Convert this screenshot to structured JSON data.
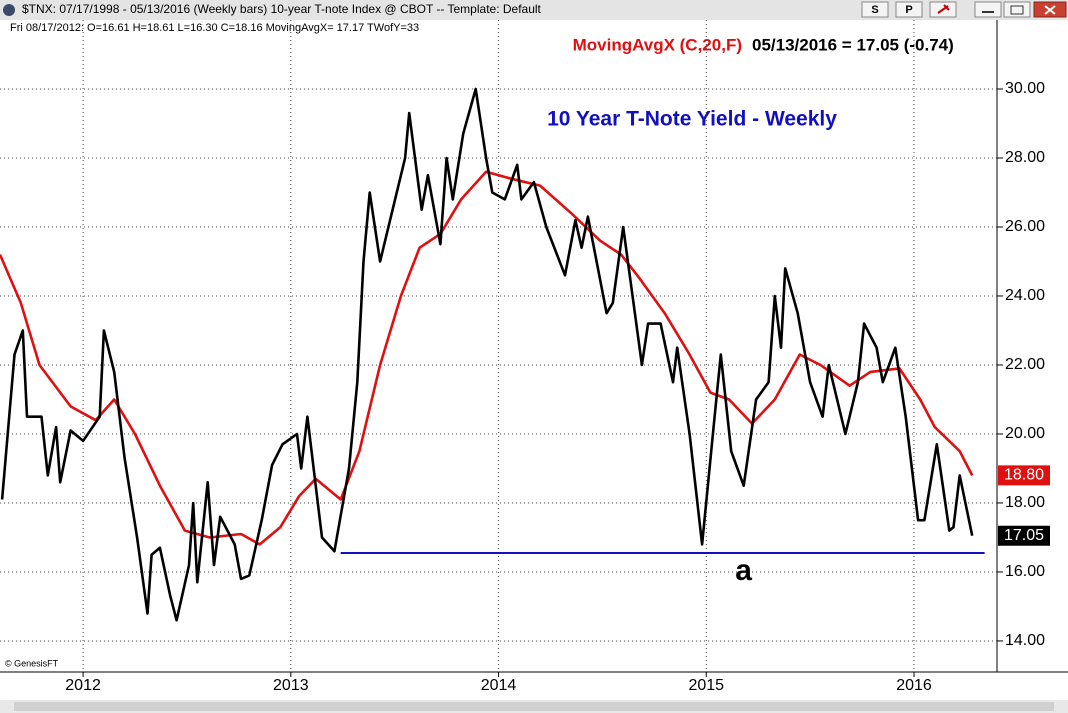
{
  "window": {
    "title": "$TNX: 07/17/1998 - 05/13/2016  (Weekly bars)  10-year T-note Index @ CBOT  --  Template: Default",
    "buttons": [
      "S",
      "P"
    ]
  },
  "info_line": "Fri    08/17/2012:  O=16.61  H=18.61  L=16.30  C=18.16  MovingAvgX= 17.17  TWofY=33",
  "chart_data": {
    "type": "line",
    "title": "10 Year T-Note Yield - Weekly",
    "legend_status": "05/13/2016 = 17.05 (-0.74)",
    "copyright": "© GenesisFT",
    "xlim": [
      2011.6,
      2016.39
    ],
    "xticks": [
      2012,
      2013,
      2014,
      2015,
      2016
    ],
    "ylim": [
      13.1,
      32.0
    ],
    "yticks": [
      {
        "value": 14,
        "label": "14.00"
      },
      {
        "value": 16,
        "label": "16.00"
      },
      {
        "value": 18,
        "label": "18.00"
      },
      {
        "value": 20,
        "label": "20.00"
      },
      {
        "value": 22,
        "label": "22.00"
      },
      {
        "value": 24,
        "label": "24.00"
      },
      {
        "value": 26,
        "label": "26.00"
      },
      {
        "value": 28,
        "label": "28.00"
      },
      {
        "value": 30,
        "label": "30.00"
      }
    ],
    "grid": true,
    "series": [
      {
        "color": "#000000",
        "x": [
          2011.61,
          2011.67,
          2011.71,
          2011.73,
          2011.8,
          2011.83,
          2011.87,
          2011.89,
          2011.94,
          2012.0,
          2012.08,
          2012.1,
          2012.15,
          2012.2,
          2012.26,
          2012.31,
          2012.33,
          2012.37,
          2012.42,
          2012.45,
          2012.51,
          2012.53,
          2012.55,
          2012.6,
          2012.63,
          2012.66,
          2012.73,
          2012.76,
          2012.8,
          2012.86,
          2012.91,
          2012.96,
          2013.03,
          2013.05,
          2013.08,
          2013.13,
          2013.15,
          2013.21,
          2013.28,
          2013.32,
          2013.35,
          2013.38,
          2013.43,
          2013.49,
          2013.55,
          2013.57,
          2013.63,
          2013.66,
          2013.72,
          2013.75,
          2013.78,
          2013.83,
          2013.89,
          2013.94,
          2013.97,
          2014.03,
          2014.09,
          2014.11,
          2014.17,
          2014.23,
          2014.32,
          2014.37,
          2014.4,
          2014.43,
          2014.52,
          2014.55,
          2014.6,
          2014.69,
          2014.72,
          2014.78,
          2014.84,
          2014.86,
          2014.92,
          2014.98,
          2015.04,
          2015.07,
          2015.12,
          2015.18,
          2015.24,
          2015.3,
          2015.33,
          2015.36,
          2015.38,
          2015.44,
          2015.5,
          2015.56,
          2015.59,
          2015.67,
          2015.73,
          2015.76,
          2015.82,
          2015.85,
          2015.91,
          2015.96,
          2016.02,
          2016.05,
          2016.11,
          2016.17,
          2016.19,
          2016.22,
          2016.28
        ],
        "values": [
          18.1,
          22.3,
          23.0,
          20.5,
          20.5,
          18.8,
          20.2,
          18.6,
          20.1,
          19.8,
          20.5,
          23.0,
          21.8,
          19.3,
          17.0,
          14.8,
          16.5,
          16.7,
          15.3,
          14.6,
          16.2,
          18.0,
          15.7,
          18.6,
          16.2,
          17.6,
          16.8,
          15.8,
          15.9,
          17.5,
          19.1,
          19.7,
          20.0,
          19.0,
          20.5,
          18.0,
          17.0,
          16.6,
          19.0,
          21.5,
          25.0,
          27.0,
          25.0,
          26.5,
          28.0,
          29.3,
          26.5,
          27.5,
          25.5,
          28.0,
          26.8,
          28.7,
          30.0,
          28.0,
          27.0,
          26.8,
          27.8,
          26.8,
          27.3,
          26.0,
          24.6,
          26.2,
          25.4,
          26.3,
          23.5,
          23.8,
          26.0,
          22.0,
          23.2,
          23.2,
          21.5,
          22.5,
          20.0,
          16.8,
          20.5,
          22.3,
          19.5,
          18.5,
          21.0,
          21.5,
          24.0,
          22.5,
          24.8,
          23.5,
          21.5,
          20.5,
          22.0,
          20.0,
          21.5,
          23.2,
          22.5,
          21.5,
          22.5,
          20.5,
          17.5,
          17.5,
          19.7,
          17.2,
          17.3,
          18.8,
          17.05
        ],
        "tag": {
          "value": 17.05,
          "label": "17.05"
        }
      },
      {
        "name": "MovingAvgX (C,20,F)",
        "color": "#e01010",
        "x": [
          2011.6,
          2011.7,
          2011.79,
          2011.94,
          2012.06,
          2012.15,
          2012.25,
          2012.37,
          2012.49,
          2012.61,
          2012.76,
          2012.85,
          2012.95,
          2013.04,
          2013.12,
          2013.24,
          2013.33,
          2013.43,
          2013.53,
          2013.62,
          2013.72,
          2013.82,
          2013.94,
          2014.06,
          2014.2,
          2014.35,
          2014.49,
          2014.59,
          2014.68,
          2014.8,
          2014.92,
          2015.02,
          2015.11,
          2015.22,
          2015.33,
          2015.45,
          2015.55,
          2015.69,
          2015.79,
          2015.93,
          2016.03,
          2016.1,
          2016.22,
          2016.28
        ],
        "values": [
          25.2,
          23.8,
          22.0,
          20.8,
          20.4,
          21.0,
          20.0,
          18.5,
          17.2,
          17.0,
          17.1,
          16.8,
          17.3,
          18.2,
          18.7,
          18.1,
          19.5,
          22.0,
          24.0,
          25.4,
          25.8,
          26.8,
          27.6,
          27.4,
          27.2,
          26.4,
          25.6,
          25.2,
          24.5,
          23.5,
          22.3,
          21.2,
          21.0,
          20.3,
          21.0,
          22.3,
          22.0,
          21.4,
          21.8,
          21.9,
          21.0,
          20.2,
          19.5,
          18.8
        ],
        "tag": {
          "value": 18.8,
          "label": "18.80"
        }
      }
    ],
    "support_line": {
      "y": 16.55,
      "x_from": 2013.24,
      "x_to": 2016.34,
      "color": "#1010c0"
    },
    "annotation": {
      "text": "a",
      "x": 2015.18,
      "y": 16.0
    }
  }
}
